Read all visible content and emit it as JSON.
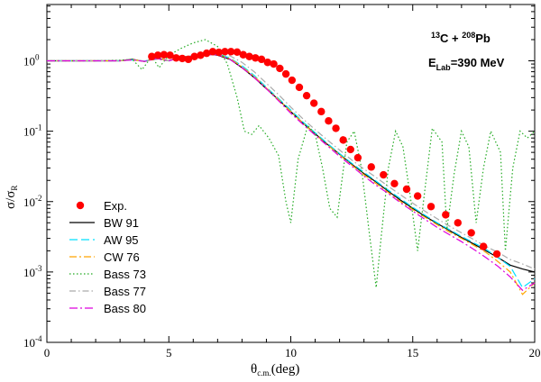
{
  "chart_data": {
    "type": "line",
    "title": "",
    "annotation": {
      "line1": {
        "sup1": "13",
        "t1": "C + ",
        "sup2": "208",
        "t2": "Pb"
      },
      "line2": {
        "t1": "E",
        "sub": "Lab",
        "t2": "=390 MeV"
      }
    },
    "xlabel": {
      "main": "θ",
      "sub": "c.m.",
      "rest": "(deg)"
    },
    "ylabel": {
      "main": "σ/σ",
      "sub": "R"
    },
    "xlim": [
      0,
      20
    ],
    "ylim_log10": [
      -4,
      0.8
    ],
    "x_ticks": [
      "0",
      "5",
      "10",
      "15",
      "20"
    ],
    "y_ticks": [
      {
        "base": "10",
        "exp": "0"
      },
      {
        "base": "10",
        "exp": "-1"
      },
      {
        "base": "10",
        "exp": "-2"
      },
      {
        "base": "10",
        "exp": "-3"
      },
      {
        "base": "10",
        "exp": "-4"
      }
    ],
    "legend_position": "lower-left",
    "points": {
      "name": "Exp.",
      "color": "#ff0000",
      "x": [
        4.3,
        4.55,
        4.8,
        5.05,
        5.3,
        5.55,
        5.8,
        6.05,
        6.3,
        6.55,
        6.8,
        7.05,
        7.3,
        7.55,
        7.8,
        8.05,
        8.3,
        8.55,
        8.8,
        9.05,
        9.3,
        9.55,
        9.8,
        10.05,
        10.35,
        10.65,
        10.95,
        11.25,
        11.55,
        11.85,
        12.15,
        12.45,
        12.75,
        13.3,
        13.8,
        14.25,
        14.75,
        15.2,
        15.75,
        16.35,
        16.85,
        17.4,
        17.9,
        18.45
      ],
      "y": [
        1.15,
        1.2,
        1.22,
        1.2,
        1.1,
        1.08,
        1.05,
        1.15,
        1.2,
        1.28,
        1.35,
        1.32,
        1.35,
        1.35,
        1.33,
        1.22,
        1.15,
        1.1,
        1.05,
        0.95,
        0.9,
        0.78,
        0.65,
        0.53,
        0.42,
        0.32,
        0.25,
        0.19,
        0.14,
        0.11,
        0.075,
        0.055,
        0.042,
        0.031,
        0.024,
        0.018,
        0.015,
        0.012,
        0.0085,
        0.0065,
        0.005,
        0.0036,
        0.0023,
        0.0018
      ]
    },
    "series": [
      {
        "name": "BW 91",
        "color": "#000000",
        "dash": "",
        "x": [
          0,
          2,
          3,
          3.5,
          4,
          4.5,
          5,
          5.5,
          6,
          6.5,
          7,
          7.5,
          8,
          8.5,
          9,
          9.5,
          10,
          10.5,
          11,
          11.5,
          12,
          12.5,
          13,
          13.5,
          14,
          14.5,
          15,
          15.5,
          16,
          16.5,
          17,
          17.5,
          18,
          18.5,
          19,
          19.5,
          20
        ],
        "y": [
          1.0,
          1.0,
          1.0,
          1.05,
          0.98,
          1.1,
          1.0,
          1.15,
          1.15,
          1.25,
          1.2,
          1.05,
          0.8,
          0.58,
          0.4,
          0.28,
          0.19,
          0.13,
          0.092,
          0.065,
          0.047,
          0.034,
          0.025,
          0.019,
          0.014,
          0.0105,
          0.008,
          0.0062,
          0.0049,
          0.0039,
          0.0031,
          0.0025,
          0.002,
          0.0016,
          0.00125,
          0.0011,
          0.001
        ]
      },
      {
        "name": "AW 95",
        "color": "#00e0ff",
        "dash": "9,4",
        "x": [
          0,
          2,
          3,
          3.5,
          4,
          4.5,
          5,
          5.5,
          6,
          6.5,
          7,
          7.5,
          8,
          8.5,
          9,
          9.5,
          10,
          10.5,
          11,
          11.5,
          12,
          12.5,
          13,
          13.5,
          14,
          14.5,
          15,
          15.5,
          16,
          16.5,
          17,
          17.5,
          18,
          18.5,
          19,
          19.5,
          20
        ],
        "y": [
          1.0,
          1.0,
          1.0,
          1.03,
          0.99,
          1.08,
          1.0,
          1.12,
          1.18,
          1.22,
          1.25,
          1.1,
          0.85,
          0.62,
          0.42,
          0.29,
          0.2,
          0.135,
          0.095,
          0.067,
          0.048,
          0.035,
          0.026,
          0.0195,
          0.0145,
          0.011,
          0.0083,
          0.0064,
          0.005,
          0.004,
          0.0032,
          0.0026,
          0.0021,
          0.0016,
          0.0012,
          0.0006,
          0.0008
        ]
      },
      {
        "name": "CW 76",
        "color": "#ffa500",
        "dash": "8,3,2,3",
        "x": [
          0,
          2,
          3,
          3.5,
          4,
          4.5,
          5,
          5.5,
          6,
          6.5,
          7,
          7.5,
          8,
          8.5,
          9,
          9.5,
          10,
          10.5,
          11,
          11.5,
          12,
          12.5,
          13,
          13.5,
          14,
          14.5,
          15,
          15.5,
          16,
          16.5,
          17,
          17.5,
          18,
          18.5,
          19,
          19.5,
          20
        ],
        "y": [
          1.0,
          1.0,
          1.0,
          1.04,
          0.98,
          1.1,
          1.0,
          1.13,
          1.17,
          1.22,
          1.22,
          1.08,
          0.82,
          0.6,
          0.41,
          0.28,
          0.19,
          0.13,
          0.09,
          0.064,
          0.046,
          0.033,
          0.024,
          0.018,
          0.0135,
          0.01,
          0.0077,
          0.006,
          0.0047,
          0.0037,
          0.003,
          0.0024,
          0.0019,
          0.0014,
          0.001,
          0.00048,
          0.0007
        ]
      },
      {
        "name": "Bass 73",
        "color": "#22aa22",
        "dash": "1.5,2.5",
        "x": [
          0,
          2,
          3,
          3.5,
          3.9,
          4.3,
          4.6,
          5.0,
          5.5,
          6.0,
          6.5,
          7.0,
          7.4,
          7.8,
          8.1,
          8.4,
          8.7,
          9.1,
          9.5,
          9.8,
          10.0,
          10.3,
          10.7,
          11.0,
          11.3,
          11.6,
          11.9,
          12.3,
          12.6,
          12.9,
          13.2,
          13.5,
          13.7,
          14.0,
          14.3,
          14.6,
          14.9,
          15.2,
          15.5,
          15.8,
          16.2,
          16.4,
          16.7,
          17.0,
          17.3,
          17.6,
          17.9,
          18.2,
          18.6,
          18.8,
          19.1,
          19.4,
          19.7,
          20
        ],
        "y": [
          1.0,
          1.0,
          1.02,
          1.05,
          0.75,
          1.15,
          0.8,
          1.2,
          1.5,
          1.8,
          2.0,
          1.6,
          0.9,
          0.3,
          0.1,
          0.09,
          0.12,
          0.08,
          0.045,
          0.01,
          0.005,
          0.04,
          0.12,
          0.09,
          0.03,
          0.008,
          0.006,
          0.07,
          0.1,
          0.03,
          0.004,
          0.0006,
          0.003,
          0.03,
          0.1,
          0.06,
          0.012,
          0.002,
          0.015,
          0.11,
          0.07,
          0.004,
          0.025,
          0.1,
          0.06,
          0.005,
          0.03,
          0.1,
          0.05,
          0.002,
          0.03,
          0.1,
          0.08,
          0.1
        ]
      },
      {
        "name": "Bass 77",
        "color": "#aaaaaa",
        "dash": "7,3,1.5,3",
        "x": [
          0,
          2,
          3,
          3.5,
          4,
          4.5,
          5,
          5.5,
          6,
          6.5,
          7,
          7.5,
          8,
          8.5,
          9,
          9.5,
          10,
          10.5,
          11,
          11.5,
          12,
          12.5,
          13,
          13.5,
          14,
          14.5,
          15,
          15.5,
          16,
          16.5,
          17,
          17.5,
          18,
          18.5,
          19,
          19.5,
          20
        ],
        "y": [
          1.0,
          1.0,
          1.0,
          1.03,
          0.99,
          1.05,
          1.0,
          1.1,
          1.15,
          1.2,
          1.25,
          1.18,
          0.95,
          0.7,
          0.48,
          0.33,
          0.22,
          0.15,
          0.105,
          0.075,
          0.054,
          0.039,
          0.029,
          0.022,
          0.0165,
          0.0125,
          0.0095,
          0.0073,
          0.0057,
          0.0045,
          0.0036,
          0.0029,
          0.0023,
          0.0019,
          0.0015,
          0.0013,
          0.0011
        ]
      },
      {
        "name": "Bass 80",
        "color": "#dd00dd",
        "dash": "9,3,2,3",
        "x": [
          0,
          2,
          3,
          3.5,
          4,
          4.5,
          5,
          5.5,
          6,
          6.5,
          7,
          7.5,
          8,
          8.5,
          9,
          9.5,
          10,
          10.5,
          11,
          11.5,
          12,
          12.5,
          13,
          13.5,
          14,
          14.5,
          15,
          15.5,
          16,
          16.5,
          17,
          17.5,
          18,
          18.5,
          19,
          19.5,
          20
        ],
        "y": [
          1.0,
          1.0,
          1.0,
          1.03,
          0.98,
          1.08,
          1.0,
          1.12,
          1.16,
          1.22,
          1.22,
          1.05,
          0.8,
          0.58,
          0.4,
          0.27,
          0.18,
          0.125,
          0.088,
          0.062,
          0.044,
          0.032,
          0.023,
          0.017,
          0.013,
          0.0096,
          0.0073,
          0.0056,
          0.0043,
          0.0034,
          0.0027,
          0.0021,
          0.0016,
          0.0012,
          0.00085,
          0.00055,
          0.0007
        ]
      }
    ]
  }
}
